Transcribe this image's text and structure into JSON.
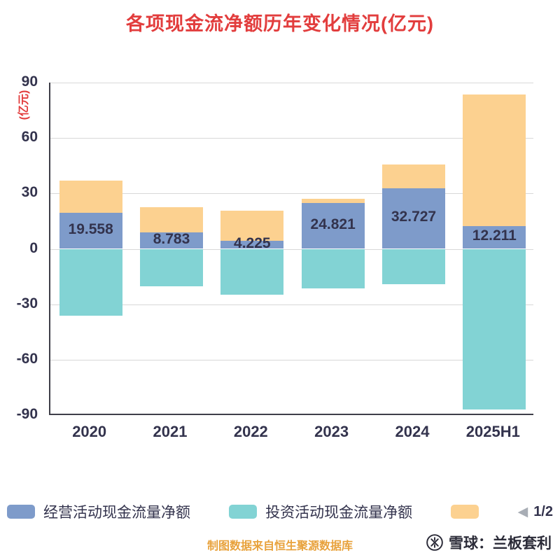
{
  "title": "各项现金流净额历年变化情况(亿元)",
  "chart_data": {
    "type": "bar",
    "stacked": true,
    "title": "各项现金流净额历年变化情况(亿元)",
    "ylabel": "(亿元)",
    "xlabel": "",
    "ylim": [
      -90,
      90
    ],
    "yticks": [
      90,
      60,
      30,
      0,
      -30,
      -60,
      -90
    ],
    "grid": true,
    "legend_position": "bottom",
    "categories": [
      "2020",
      "2021",
      "2022",
      "2023",
      "2024",
      "2025H1"
    ],
    "series": [
      {
        "name": "经营活动现金流量净额",
        "color": "#7e9bca",
        "values": [
          19.558,
          8.783,
          4.225,
          24.821,
          32.727,
          12.211
        ]
      },
      {
        "name": "投资活动现金流量净额",
        "color": "#82d3d4",
        "values": [
          -36.3,
          -20.4,
          -24.9,
          -21.5,
          -19.2,
          -87.0
        ]
      },
      {
        "name": "",
        "color": "#fcd190",
        "values": [
          17.5,
          13.9,
          16.5,
          2.2,
          12.8,
          71.3
        ]
      }
    ],
    "data_labels": [
      "19.558",
      "8.783",
      "4.225",
      "24.821",
      "32.727",
      "12.211"
    ]
  },
  "legend": {
    "items": [
      {
        "label": "经营活动现金流量净额",
        "color": "#7e9bca"
      },
      {
        "label": "投资活动现金流量净额",
        "color": "#82d3d4"
      },
      {
        "label": "",
        "color": "#fcd190"
      }
    ],
    "pagination": {
      "arrow": "◀",
      "label": "1/2"
    }
  },
  "footer": {
    "source_note": "制图数据来自恒生聚源数据库",
    "watermark": "雪球：兰板套利"
  },
  "colors": {
    "title": "#e23d3d",
    "axis_text": "#33334d",
    "grid": "#d8d8d8",
    "axis_line": "#3f3f49",
    "source_note": "#e8a23c",
    "watermark": "#2b2b38"
  }
}
